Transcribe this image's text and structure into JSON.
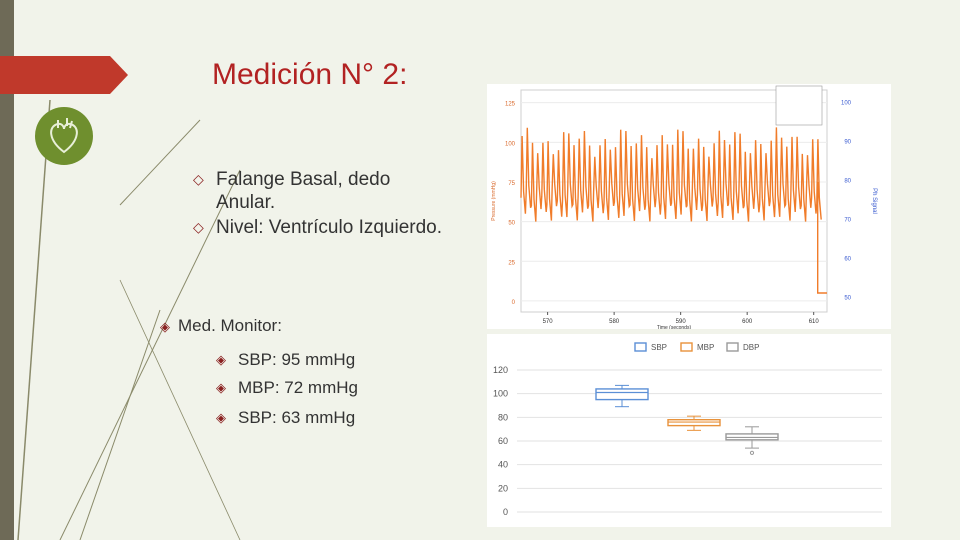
{
  "slide": {
    "title": "Medición N° 2:",
    "bullets": [
      "Falange Basal, dedo Anular.",
      "Nivel: Ventrículo Izquierdo."
    ],
    "monitor_label": "Med. Monitor:",
    "readings": [
      "SBP: 95 mmHg",
      "MBP: 72 mmHg",
      "SBP: 63 mmHg"
    ],
    "colors": {
      "title": "#b22222",
      "bar": "#6e6a57",
      "ribbon": "#c0392b"
    }
  },
  "chart_data": [
    {
      "type": "line",
      "xlabel": "Time (seconds)",
      "ylabel": "Pressure (mmHg)",
      "y2label": "Ph Signal",
      "xlim": [
        566,
        612
      ],
      "ylim": [
        -7,
        133
      ],
      "y2lim": [
        46,
        103
      ],
      "x_ticks": [
        "570",
        "580",
        "590",
        "600",
        "610"
      ],
      "y_ticks": [
        "0",
        "25",
        "50",
        "75",
        "100",
        "125"
      ],
      "y2_ticks": [
        "50",
        "60",
        "70",
        "80",
        "90",
        "100"
      ],
      "series": [
        {
          "color": "#f07c2a",
          "pulse_low": 55,
          "pulse_high": 100,
          "start_x": 566,
          "end_x": 610.6,
          "drop_value": 5
        }
      ]
    },
    {
      "type": "box",
      "legend": [
        "SBP",
        "MBP",
        "DBP"
      ],
      "colors": [
        "#5b8fd6",
        "#e8923b",
        "#9a9a9a"
      ],
      "ylim": [
        0,
        120
      ],
      "y_ticks": [
        "0",
        "20",
        "40",
        "60",
        "80",
        "100",
        "120"
      ],
      "boxes": [
        {
          "min": 89,
          "q1": 95,
          "median": 101,
          "q3": 104,
          "max": 107
        },
        {
          "min": 69,
          "q1": 73,
          "median": 76,
          "q3": 78,
          "max": 81
        },
        {
          "min": 54,
          "q1": 61,
          "median": 63,
          "q3": 66,
          "max": 72,
          "outlier": 50
        }
      ]
    }
  ]
}
